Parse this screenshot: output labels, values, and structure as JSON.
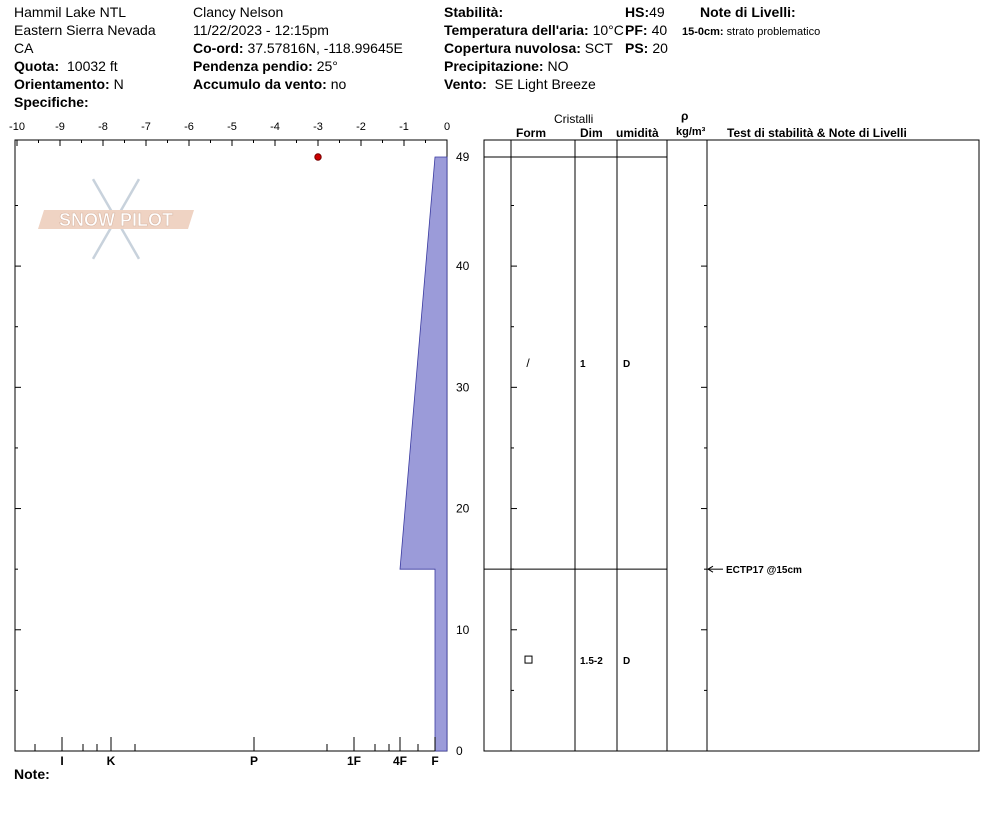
{
  "header": {
    "location": "Hammil Lake NTL",
    "range": "Eastern Sierra Nevada",
    "state": "CA",
    "elevation_label": "Quota:",
    "elevation_value": "10032 ft",
    "aspect_label": "Orientamento:",
    "aspect_value": "N",
    "specifics_label": "Specifiche:",
    "observer": "Clancy Nelson",
    "datetime": "11/22/2023 - 12:15pm",
    "coords_label": "Co-ord:",
    "coords_value": "37.57816N, -118.99645E",
    "slope_label": "Pendenza pendio:",
    "slope_value": "25°",
    "wind_loading_label": "Accumulo da vento:",
    "wind_loading_value": "no",
    "stability_label": "Stabilità:",
    "air_temp_label": "Temperatura dell'aria:",
    "air_temp_value": "10°C",
    "sky_label": "Copertura nuvolosa:",
    "sky_value": "SCT",
    "precip_label": "Precipitazione:",
    "precip_value": "NO",
    "wind_label": "Vento:",
    "wind_value": "SE  Light Breeze",
    "hs_label": "HS:",
    "hs_value": "49",
    "pf_label": "PF:",
    "pf_value": "40",
    "ps_label": "PS:",
    "ps_value": "20",
    "layer_notes_title": "Note di Livelli:",
    "layer_note_range": "15-0cm:",
    "layer_note_text": "strato problematico"
  },
  "columns": {
    "crystals": "Cristalli",
    "form": "Form",
    "size": "Dim",
    "moisture": "umidità",
    "rho": "ρ",
    "density_unit": "kg/m³",
    "tests_notes": "Test di stabilità & Note di Livelli"
  },
  "logo_text": "SNOW PILOT",
  "notes_label": "Note:",
  "chart_data": {
    "type": "area",
    "temp_axis": {
      "ticks": [
        "-10",
        "-9",
        "-8",
        "-7",
        "-6",
        "-5",
        "-4",
        "-3",
        "-2",
        "-1",
        "0"
      ],
      "range": [
        -10,
        0
      ]
    },
    "height_axis": {
      "ticks": [
        "0",
        "10",
        "20",
        "30",
        "40",
        "49"
      ],
      "range": [
        0,
        49
      ]
    },
    "hardness_axis": {
      "ticks": [
        "I",
        "K",
        "P",
        "1F",
        "4F",
        "F"
      ]
    },
    "air_temperature_points": [
      {
        "height": 49,
        "temp": -3
      }
    ],
    "hardness_profile": [
      {
        "top": 49,
        "bottom": 15,
        "hardness_top": "F",
        "hardness_bottom": "4F"
      },
      {
        "top": 15,
        "bottom": 0,
        "hardness_top": "F",
        "hardness_bottom": "F"
      }
    ],
    "layer_boundaries": [
      49,
      15
    ],
    "layers": [
      {
        "form": "/",
        "size": "1",
        "moisture": "D",
        "height": 32
      },
      {
        "form": "□",
        "size": "1.5-2",
        "moisture": "D",
        "height": 7.5
      }
    ],
    "stability_tests": [
      {
        "height": 15,
        "label": "ECTP17 @15cm"
      }
    ],
    "colors": {
      "profile_fill": "#9b9bd9",
      "profile_stroke": "#3a3aa0",
      "temp_point": "#cc0000"
    }
  }
}
